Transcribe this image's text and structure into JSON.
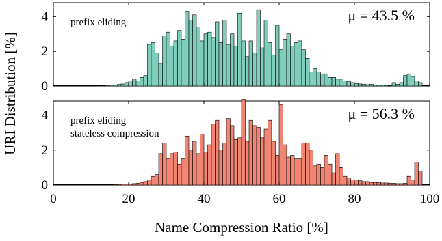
{
  "chart_data": {
    "shared_ylabel": "URI Distribution [%]",
    "shared_xlabel": "Name Compression Ratio [%]",
    "xlim": [
      0,
      100
    ],
    "x_ticks": [
      0,
      20,
      40,
      60,
      80,
      100
    ],
    "bin_width": 1,
    "panels": [
      {
        "type": "bar",
        "annotation_lines": [
          "prefix eliding"
        ],
        "mean_label": "μ = 43.5 %",
        "color": "#7fcdbb",
        "ylim": [
          0,
          4.8
        ],
        "y_ticks": [
          0,
          2,
          4
        ],
        "x": [
          10,
          11,
          12,
          13,
          14,
          15,
          16,
          17,
          18,
          19,
          20,
          21,
          22,
          23,
          24,
          25,
          26,
          27,
          28,
          29,
          30,
          31,
          32,
          33,
          34,
          35,
          36,
          37,
          38,
          39,
          40,
          41,
          42,
          43,
          44,
          45,
          46,
          47,
          48,
          49,
          50,
          51,
          52,
          53,
          54,
          55,
          56,
          57,
          58,
          59,
          60,
          61,
          62,
          63,
          64,
          65,
          66,
          67,
          68,
          69,
          70,
          71,
          72,
          73,
          74,
          75,
          76,
          77,
          78,
          79,
          80,
          81,
          82,
          83,
          84,
          85,
          86,
          87,
          88,
          89,
          90,
          91,
          92,
          93,
          94,
          95,
          96,
          97
        ],
        "values": [
          0.01,
          0.01,
          0.02,
          0.03,
          0.04,
          0.05,
          0.07,
          0.09,
          0.12,
          0.2,
          0.3,
          0.4,
          0.3,
          0.5,
          0.6,
          2.4,
          2.5,
          1.9,
          1.3,
          2.9,
          3.1,
          2.3,
          2.6,
          3.2,
          2.7,
          4.3,
          3.8,
          4.1,
          3.4,
          2.6,
          3.0,
          3.1,
          2.8,
          3.7,
          2.5,
          3.8,
          2.4,
          3.0,
          2.3,
          4.2,
          2.6,
          1.7,
          2.6,
          1.9,
          4.4,
          2.2,
          3.8,
          2.5,
          1.8,
          3.5,
          2.1,
          2.7,
          3.0,
          2.3,
          2.5,
          2.6,
          2.1,
          1.6,
          0.8,
          1.0,
          0.8,
          0.7,
          0.7,
          0.5,
          0.5,
          0.4,
          0.4,
          0.3,
          0.25,
          0.2,
          0.15,
          0.12,
          0.1,
          0.08,
          0.1,
          0.06,
          0.05,
          0.05,
          0.04,
          0.03,
          0.2,
          0.1,
          0.2,
          0.6,
          0.7,
          0.55,
          0.3,
          0.2
        ]
      },
      {
        "type": "bar",
        "annotation_lines": [
          "prefix eliding",
          "stateless compression"
        ],
        "mean_label": "μ = 56.3 %",
        "color": "#f08573",
        "ylim": [
          0,
          4.8
        ],
        "y_ticks": [
          0,
          2,
          4
        ],
        "x": [
          10,
          11,
          12,
          13,
          14,
          15,
          16,
          17,
          18,
          19,
          20,
          21,
          22,
          23,
          24,
          25,
          26,
          27,
          28,
          29,
          30,
          31,
          32,
          33,
          34,
          35,
          36,
          37,
          38,
          39,
          40,
          41,
          42,
          43,
          44,
          45,
          46,
          47,
          48,
          49,
          50,
          51,
          52,
          53,
          54,
          55,
          56,
          57,
          58,
          59,
          60,
          61,
          62,
          63,
          64,
          65,
          66,
          67,
          68,
          69,
          70,
          71,
          72,
          73,
          74,
          75,
          76,
          77,
          78,
          79,
          80,
          81,
          82,
          83,
          84,
          85,
          86,
          87,
          88,
          89,
          90,
          91,
          92,
          93,
          94,
          95,
          96,
          97
        ],
        "values": [
          0.01,
          0.01,
          0.01,
          0.01,
          0.02,
          0.02,
          0.03,
          0.04,
          0.05,
          0.06,
          0.07,
          0.08,
          0.1,
          0.15,
          0.2,
          0.3,
          0.5,
          0.6,
          1.8,
          2.4,
          1.5,
          1.8,
          1.9,
          1.2,
          1.5,
          2.8,
          2.0,
          2.5,
          1.8,
          2.9,
          1.9,
          2.3,
          3.5,
          3.7,
          2.0,
          2.4,
          3.8,
          3.4,
          2.6,
          2.7,
          4.9,
          2.5,
          3.7,
          3.4,
          3.3,
          2.7,
          3.2,
          3.7,
          2.5,
          1.7,
          4.6,
          2.3,
          1.6,
          1.7,
          1.5,
          1.5,
          2.4,
          2.4,
          2.0,
          1.1,
          1.2,
          1.0,
          1.7,
          1.2,
          0.7,
          1.8,
          1.0,
          0.5,
          0.4,
          0.3,
          0.3,
          0.25,
          0.2,
          0.2,
          0.15,
          0.15,
          0.15,
          0.12,
          0.12,
          0.1,
          0.1,
          0.08,
          0.08,
          0.1,
          0.5,
          0.3,
          1.3,
          0.8
        ]
      }
    ]
  }
}
